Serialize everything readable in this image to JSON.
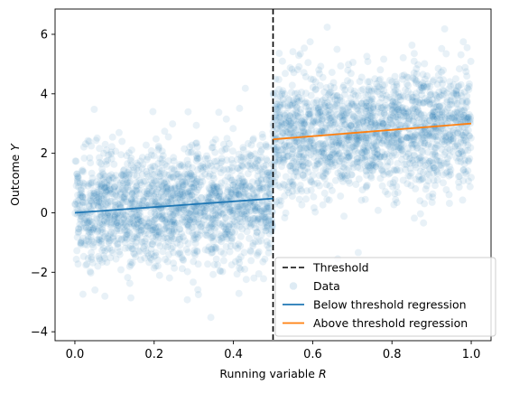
{
  "chart_data": {
    "type": "scatter",
    "xlabel": "Running variable",
    "xlabel_var": "R",
    "ylabel": "Outcome",
    "ylabel_var": "Y",
    "xlim": [
      -0.05,
      1.05
    ],
    "ylim": [
      -4.3,
      6.85
    ],
    "xticks": [
      0.0,
      0.2,
      0.4,
      0.6,
      0.8,
      1.0
    ],
    "xtick_labels": [
      "0.0",
      "0.2",
      "0.4",
      "0.6",
      "0.8",
      "1.0"
    ],
    "yticks": [
      -4,
      -2,
      0,
      2,
      4,
      6
    ],
    "ytick_labels": [
      "−4",
      "−2",
      "0",
      "2",
      "4",
      "6"
    ],
    "grid": false,
    "legend_position": "lower-right",
    "threshold": {
      "name": "Threshold",
      "x": 0.5,
      "color": "#000000",
      "style": "dashed"
    },
    "scatter": {
      "name": "Data",
      "color": "#1f77b4",
      "n_points": 3500,
      "below": {
        "x_range": [
          0.0,
          0.5
        ],
        "intercept": 0.0,
        "slope": 1.0,
        "sd": 1.0
      },
      "above": {
        "x_range": [
          0.5,
          1.0
        ],
        "intercept": 1.95,
        "slope": 1.05,
        "sd": 1.0
      }
    },
    "series": [
      {
        "name": "Below threshold regression",
        "color": "#1f77b4",
        "x": [
          0.0,
          0.5
        ],
        "y": [
          0.0,
          0.48
        ]
      },
      {
        "name": "Above threshold regression",
        "color": "#ff7f0e",
        "x": [
          0.5,
          1.0
        ],
        "y": [
          2.47,
          3.0
        ]
      }
    ],
    "legend": [
      {
        "label": "Threshold",
        "kind": "dashed-line",
        "color": "#000000"
      },
      {
        "label": "Data",
        "kind": "marker",
        "color": "#1f77b4"
      },
      {
        "label": "Below threshold regression",
        "kind": "line",
        "color": "#1f77b4"
      },
      {
        "label": "Above threshold regression",
        "kind": "line",
        "color": "#ff7f0e"
      }
    ]
  }
}
